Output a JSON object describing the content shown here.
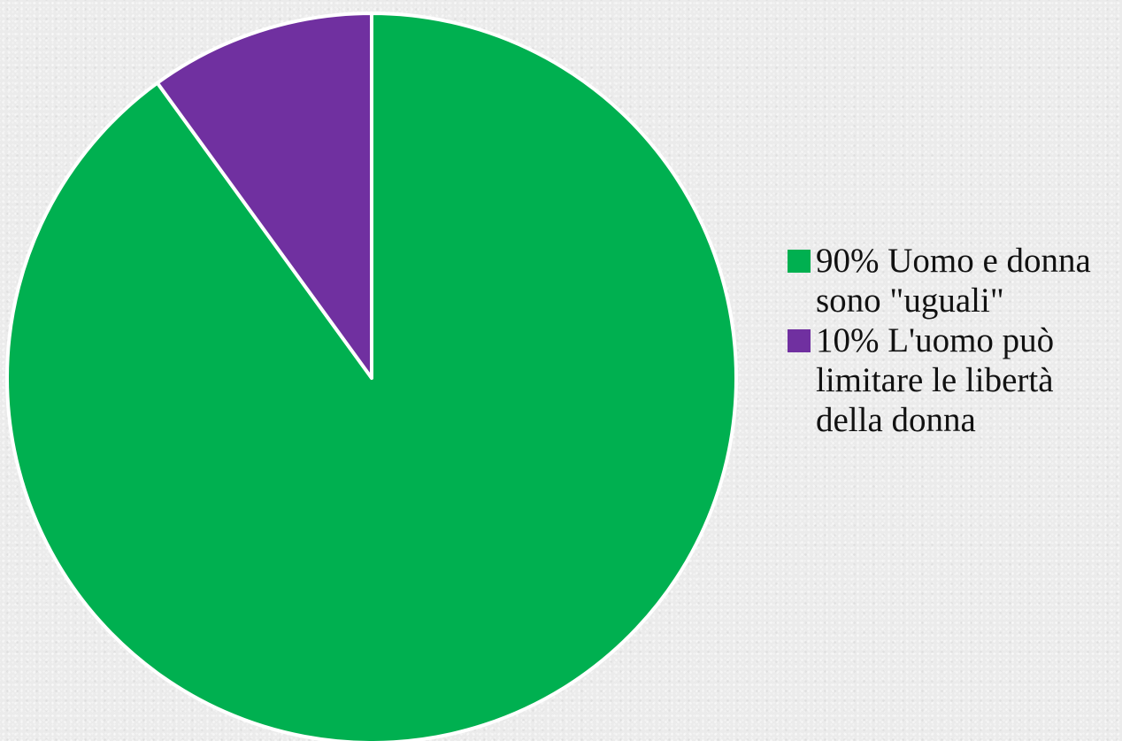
{
  "chart_data": {
    "type": "pie",
    "title": "",
    "slices": [
      {
        "label": "90% Uomo e donna sono \"uguali\"",
        "value": 90,
        "color": "#00b050"
      },
      {
        "label": "10% L'uomo può limitare le libertà della donna",
        "value": 10,
        "color": "#7030a0"
      }
    ],
    "start_angle_deg": 0,
    "direction": "clockwise",
    "legend_position": "right"
  }
}
